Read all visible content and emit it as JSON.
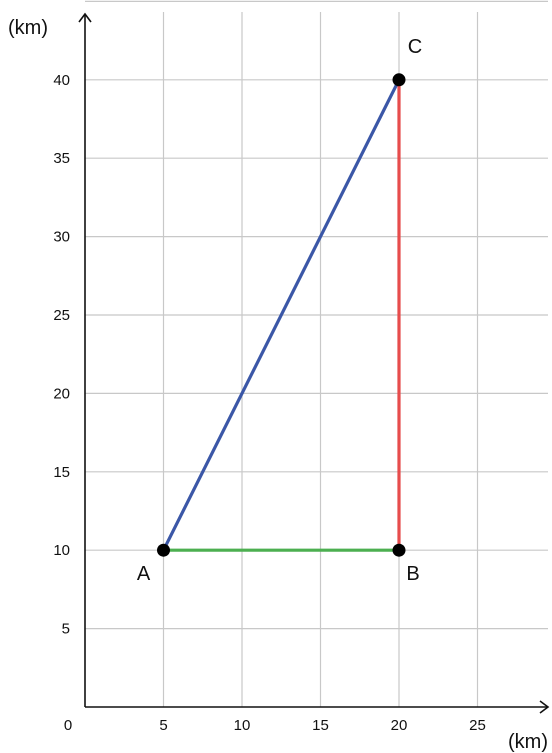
{
  "chart_data": {
    "type": "scatter",
    "title": "",
    "xlabel": "(km)",
    "ylabel": "(km)",
    "origin_label": "0",
    "xlim": [
      0,
      30
    ],
    "ylim": [
      0,
      45
    ],
    "grid": true,
    "x_ticks": [
      5,
      10,
      15,
      20,
      25
    ],
    "y_ticks": [
      5,
      10,
      15,
      20,
      25,
      30,
      35,
      40
    ],
    "points": [
      {
        "label": "A",
        "x": 5,
        "y": 10
      },
      {
        "label": "B",
        "x": 20,
        "y": 10
      },
      {
        "label": "C",
        "x": 20,
        "y": 40
      }
    ],
    "segments": [
      {
        "from": "A",
        "to": "B",
        "color": "#4caf50"
      },
      {
        "from": "B",
        "to": "C",
        "color": "#e74c4c"
      },
      {
        "from": "A",
        "to": "C",
        "color": "#3b57a7"
      }
    ],
    "colors": {
      "grid": "#c8c8c8",
      "axis": "#111111",
      "point": "#000000"
    }
  }
}
